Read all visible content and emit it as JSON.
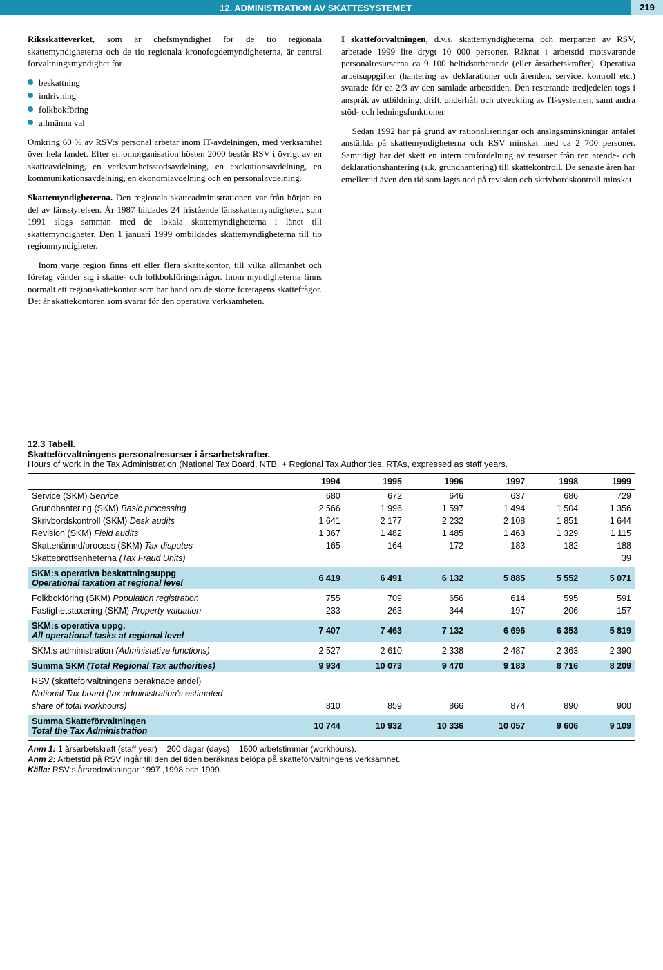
{
  "header": {
    "title": "12. ADMINISTRATION AV SKATTESYSTEMET",
    "page": "219"
  },
  "left": {
    "p1_lead": "Riksskatteverket",
    "p1_rest": ", som är chefsmyndighet för de tio regionala skattemyndigheterna och de tio regionala kronofogdemyndigheterna, är central förvaltningsmyndighet för",
    "bullets": [
      "beskattning",
      "indrivning",
      "folkbokföring",
      "allmänna val"
    ],
    "p2": "Omkring 60 % av RSV:s personal arbetar inom IT-avdelningen, med verksamhet över hela landet. Efter en omorganisation hösten 2000 består RSV i övrigt av en skatteavdelning, en verksamhetsstödsavdelning, en exekutionsavdelning, en kommunikationsavdelning, en ekonomiavdelning och en personalavdelning.",
    "p3_lead": "Skattemyndigheterna.",
    "p3_rest": " Den regionala skatteadministrationen var från början en del av länsstyrelsen. År 1987 bildades 24 fristående länsskattemyndigheter, som 1991 slogs samman med de lokala skattemyndigheterna i länet till skattemyndigheter. Den 1 januari 1999 ombildades skattemyndigheterna till tio regionmyndigheter.",
    "p4": "Inom varje region finns ett eller flera skattekontor, till vilka allmänhet och företag vänder sig i skatte- och folkbokföringsfrågor. Inom myndigheterna finns normalt ett regionskattekontor som har hand om de större företagens skattefrågor. Det är skattekontoren som svarar för den operativa verksamheten."
  },
  "right": {
    "p1_lead": "I skatteförvaltningen",
    "p1_rest": ", d.v.s. skattemyndigheterna och merparten av RSV, arbetade 1999 lite drygt 10 000 personer. Räknat i arbetstid motsvarande personalresurserna ca 9 100 heltidsarbetande (eller årsarbetskrafter). Operativa arbetsuppgifter (hantering av deklarationer och ärenden, service, kontroll etc.) svarade för ca 2/3 av den samlade arbetstiden. Den resterande tredjedelen togs i anspråk av utbildning, drift, underhåll och utveckling av IT-systemen, samt andra stöd- och ledningsfunktioner.",
    "p2": "Sedan 1992 har på grund av rationaliseringar och anslagsminskningar antalet anställda på skattemyndigheterna och RSV minskat med ca 2 700 personer. Samtidigt har det skett en intern omfördelning av resurser från ren ärende- och deklarationshantering (s.k. grundhantering) till skattekontroll. De senaste åren har emellertid även den tid som lagts ned på revision och skrivbordskontroll minskat."
  },
  "table": {
    "title1": "12.3 Tabell.",
    "title2": "Skatteförvaltningens personalresurser i årsarbetskrafter.",
    "sub": "Hours of work in the Tax Administration (National Tax Board, NTB, + Regional Tax Authorities, RTAs, expressed as staff years.",
    "years": [
      "1994",
      "1995",
      "1996",
      "1997",
      "1998",
      "1999"
    ],
    "rows": [
      {
        "label_sv": "Service (SKM)",
        "label_en": "Service",
        "v": [
          "680",
          "672",
          "646",
          "637",
          "686",
          "729"
        ]
      },
      {
        "label_sv": "Grundhantering (SKM)",
        "label_en": "Basic processing",
        "v": [
          "2 566",
          "1 996",
          "1 597",
          "1 494",
          "1 504",
          "1 356"
        ]
      },
      {
        "label_sv": "Skrivbordskontroll (SKM)",
        "label_en": "Desk audits",
        "v": [
          "1 641",
          "2 177",
          "2 232",
          "2 108",
          "1 851",
          "1 644"
        ]
      },
      {
        "label_sv": "Revision (SKM)",
        "label_en": "Field audits",
        "v": [
          "1 367",
          "1 482",
          "1 485",
          "1 463",
          "1 329",
          "1 115"
        ]
      },
      {
        "label_sv": "Skattenämnd/process (SKM)",
        "label_en": "Tax disputes",
        "v": [
          "165",
          "164",
          "172",
          "183",
          "182",
          "188"
        ]
      },
      {
        "label_sv": "Skattebrottsenheterna",
        "label_en": "(Tax Fraud Units)",
        "v": [
          "",
          "",
          "",
          "",
          "",
          "39"
        ]
      }
    ],
    "hl1": {
      "label_sv": "SKM:s operativa beskattningsuppg",
      "label_en": "Operational taxation at regional level",
      "v": [
        "6 419",
        "6 491",
        "6 132",
        "5 885",
        "5 552",
        "5 071"
      ]
    },
    "rows2": [
      {
        "label_sv": "Folkbokföring  (SKM)",
        "label_en": "Population registration",
        "v": [
          "755",
          "709",
          "656",
          "614",
          "595",
          "591"
        ]
      },
      {
        "label_sv": "Fastighetstaxering (SKM)",
        "label_en": "Property valuation",
        "v": [
          "233",
          "263",
          "344",
          "197",
          "206",
          "157"
        ]
      }
    ],
    "hl2": {
      "label_sv": "SKM:s operativa uppg.",
      "label_en": "All operational tasks at regional level",
      "v": [
        "7 407",
        "7 463",
        "7 132",
        "6 696",
        "6 353",
        "5 819"
      ]
    },
    "rows3": [
      {
        "label_sv": "SKM:s administration",
        "label_en": "(Administative functions)",
        "v": [
          "2 527",
          "2 610",
          "2 338",
          "2 487",
          "2 363",
          "2 390"
        ]
      }
    ],
    "hl3": {
      "label_sv": "Summa SKM",
      "label_en": "(Total Regional Tax authorities)",
      "v": [
        "9 934",
        "10 073",
        "9 470",
        "9 183",
        "8 716",
        "8 209"
      ]
    },
    "rows4": [
      {
        "label_sv": "RSV (skatteförvaltningens beräknade andel)",
        "label_en": "",
        "v": [
          "",
          "",
          "",
          "",
          "",
          ""
        ]
      },
      {
        "label_sv": "",
        "label_en": "National Tax board (tax administration's estimated",
        "v": [
          "",
          "",
          "",
          "",
          "",
          ""
        ]
      },
      {
        "label_sv": "",
        "label_en": "share of total workhours)",
        "v": [
          "810",
          "859",
          "866",
          "874",
          "890",
          "900"
        ]
      }
    ],
    "hl4": {
      "label_sv": "Summa Skatteförvaltningen",
      "label_en": "Total the Tax Administration",
      "v": [
        "10 744",
        "10 932",
        "10 336",
        "10 057",
        "9 606",
        "9 109"
      ]
    },
    "notes": {
      "n1_lead": "Anm 1:",
      "n1": " 1 årsarbetskraft (staff year) = 200 dagar (days)  = 1600 arbetstimmar (workhours).",
      "n2_lead": "Anm 2:",
      "n2": " Arbetstid på RSV ingår till den del tiden beräknas belöpa på skatteförvaltningens verksamhet.",
      "src_lead": "Källa:",
      "src": " RSV:s årsredovisningar 1997 ,1998 och 1999."
    }
  }
}
